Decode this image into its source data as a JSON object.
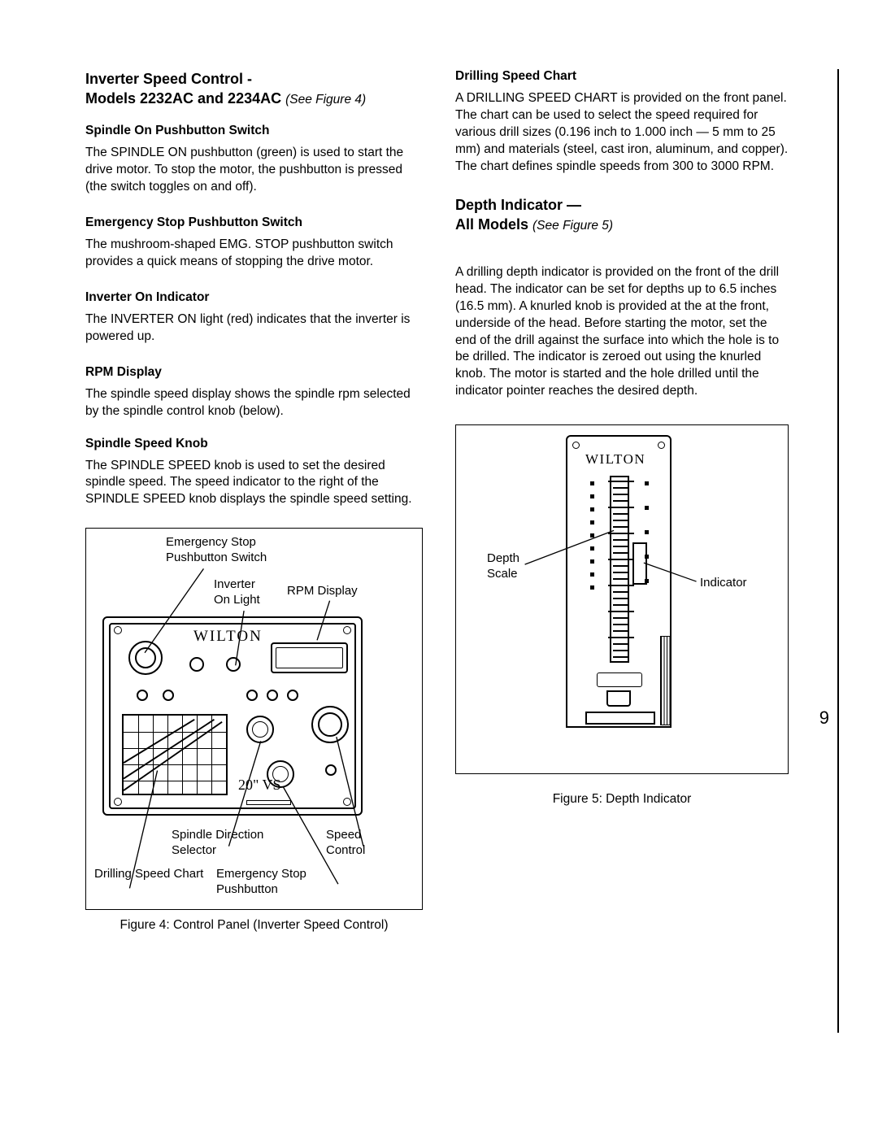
{
  "page_number": "9",
  "left": {
    "heading_part1": "Inverter Speed Control -",
    "heading_part2_prefix": "Models 2232AC and 2234AC ",
    "heading_see": "(See Figure 4)",
    "sec1_h": "Spindle On Pushbutton Switch",
    "sec1_p": "The SPINDLE ON pushbutton (green) is used to start the drive motor.  To stop the motor, the pushbutton is pressed (the switch toggles on and off).",
    "sec2_h": "Emergency Stop Pushbutton Switch",
    "sec2_p": "The mushroom-shaped EMG. STOP pushbutton switch provides a quick means of stopping the drive motor.",
    "sec3_h": "Inverter On Indicator",
    "sec3_p": "The INVERTER ON light (red) indicates that the inverter is powered up.",
    "sec4_h": "RPM Display",
    "sec4_p": "The spindle speed display shows the spindle rpm selected by the spindle control knob (below).",
    "sec5_h": "Spindle Speed Knob",
    "sec5_p": "The SPINDLE SPEED knob is used to set the desired spindle speed.  The speed indicator to the right of the SPINDLE SPEED knob displays the spindle speed setting.",
    "fig4_caption": "Figure 4:  Control Panel (Inverter Speed Control)",
    "fig4_labels": {
      "emg_stop_switch_l1": "Emergency Stop",
      "emg_stop_switch_l2": "Pushbutton Switch",
      "inv_on_l1": "Inverter",
      "inv_on_l2": "On Light",
      "rpm": "RPM Display",
      "spindle_dir_l1": "Spindle Direction",
      "spindle_dir_l2": "Selector",
      "speed_l1": "Speed",
      "speed_l2": "Control",
      "drill_chart": "Drilling Speed Chart",
      "emg_stop_btn_l1": "Emergency Stop",
      "emg_stop_btn_l2": "Pushbutton",
      "brand": "WILTON",
      "size": "20\" VS"
    }
  },
  "right": {
    "sec1_h": "Drilling Speed Chart",
    "sec1_p": "A DRILLING SPEED CHART is provided on the front panel.  The chart can be used to select the speed required for various drill sizes (0.196 inch to 1.000 inch — 5 mm to 25 mm) and materials (steel, cast iron, aluminum, and copper).   The chart defines spindle speeds from 300 to 3000 RPM.",
    "heading_part1": "Depth Indicator —",
    "heading_part2_prefix": "All Models ",
    "heading_see": "(See Figure 5)",
    "sec2_p": "A drilling depth indicator is provided on the front of the drill head.  The indicator can be set for depths up to 6.5 inches (16.5 mm).  A knurled knob is provided at the at the front, underside of the head.  Before starting the motor, set the end of the drill against the surface into which the hole is to be drilled.  The indicator is zeroed out using the knurled knob.  The motor is started and the hole drilled until the indicator pointer reaches the desired depth.",
    "fig5_caption": "Figure 5:  Depth Indicator",
    "fig5_labels": {
      "depth_scale_l1": "Depth",
      "depth_scale_l2": "Scale",
      "indicator": "Indicator",
      "brand": "WILTON"
    }
  },
  "colors": {
    "text": "#000000",
    "bg": "#ffffff",
    "line": "#000000"
  }
}
